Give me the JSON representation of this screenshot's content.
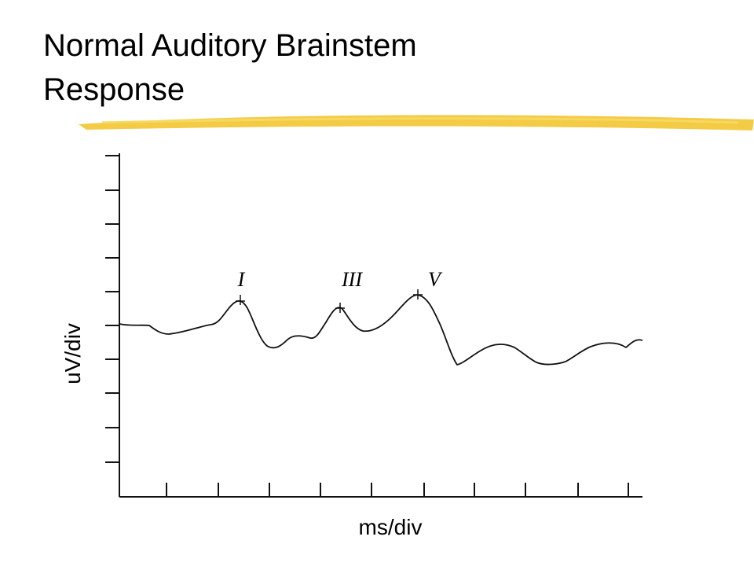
{
  "title": "Normal Auditory Brainstem Response",
  "figure": {
    "y_label": "uV/div",
    "x_label": "ms/div",
    "peaks": [
      "I",
      "III",
      "V"
    ]
  }
}
